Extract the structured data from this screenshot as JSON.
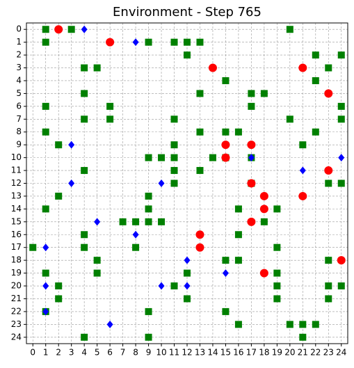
{
  "chart_data": {
    "type": "scatter",
    "title": "Environment - Step 765",
    "xlim": [
      -0.5,
      24.5
    ],
    "ylim": [
      24.5,
      -0.5
    ],
    "xticks": [
      0,
      1,
      2,
      3,
      4,
      5,
      6,
      7,
      8,
      9,
      10,
      11,
      12,
      13,
      14,
      15,
      16,
      17,
      18,
      19,
      20,
      21,
      22,
      23,
      24
    ],
    "yticks": [
      0,
      1,
      2,
      3,
      4,
      5,
      6,
      7,
      8,
      9,
      10,
      11,
      12,
      13,
      14,
      15,
      16,
      17,
      18,
      19,
      20,
      21,
      22,
      23,
      24
    ],
    "grid": true,
    "series": [
      {
        "color": "#008000",
        "marker": "square",
        "x": [
          1,
          3,
          20,
          1,
          9,
          11,
          12,
          13,
          12,
          22,
          24,
          4,
          5,
          23,
          15,
          22,
          4,
          13,
          17,
          18,
          1,
          6,
          17,
          24,
          4,
          6,
          11,
          20,
          24,
          1,
          13,
          15,
          16,
          22,
          2,
          11,
          21,
          9,
          10,
          11,
          14,
          15,
          17,
          4,
          11,
          13,
          11,
          17,
          23,
          24,
          2,
          9,
          1,
          9,
          16,
          19,
          7,
          8,
          9,
          10,
          18,
          4,
          16,
          0,
          4,
          8,
          19,
          5,
          15,
          16,
          23,
          1,
          5,
          12,
          19,
          2,
          11,
          19,
          23,
          24,
          2,
          12,
          19,
          23,
          1,
          9,
          15,
          16,
          20,
          21,
          22,
          4,
          9,
          21
        ],
        "y": [
          0,
          0,
          0,
          1,
          1,
          1,
          1,
          1,
          2,
          2,
          2,
          3,
          3,
          3,
          4,
          4,
          5,
          5,
          5,
          5,
          6,
          6,
          6,
          6,
          7,
          7,
          7,
          7,
          7,
          8,
          8,
          8,
          8,
          8,
          9,
          9,
          9,
          10,
          10,
          10,
          10,
          10,
          10,
          11,
          11,
          11,
          12,
          12,
          12,
          12,
          13,
          13,
          14,
          14,
          14,
          14,
          15,
          15,
          15,
          15,
          15,
          16,
          16,
          17,
          17,
          17,
          17,
          18,
          18,
          18,
          18,
          19,
          19,
          19,
          19,
          20,
          20,
          20,
          20,
          20,
          21,
          21,
          21,
          21,
          22,
          22,
          22,
          23,
          23,
          23,
          23,
          24,
          24,
          24
        ]
      },
      {
        "color": "#ff0000",
        "marker": "circle",
        "x": [
          2,
          6,
          14,
          21,
          23,
          15,
          17,
          15,
          23,
          17,
          18,
          21,
          18,
          17,
          13,
          13,
          24,
          18
        ],
        "y": [
          0,
          1,
          3,
          3,
          5,
          9,
          9,
          10,
          11,
          12,
          13,
          13,
          14,
          15,
          16,
          17,
          18,
          19
        ]
      },
      {
        "color": "#0000ff",
        "marker": "diamond",
        "x": [
          4,
          8,
          3,
          24,
          17,
          21,
          3,
          10,
          5,
          8,
          1,
          12,
          15,
          1,
          10,
          12,
          1,
          6
        ],
        "y": [
          0,
          1,
          9,
          10,
          10,
          11,
          12,
          12,
          15,
          16,
          17,
          18,
          19,
          20,
          20,
          20,
          22,
          23
        ]
      }
    ]
  }
}
